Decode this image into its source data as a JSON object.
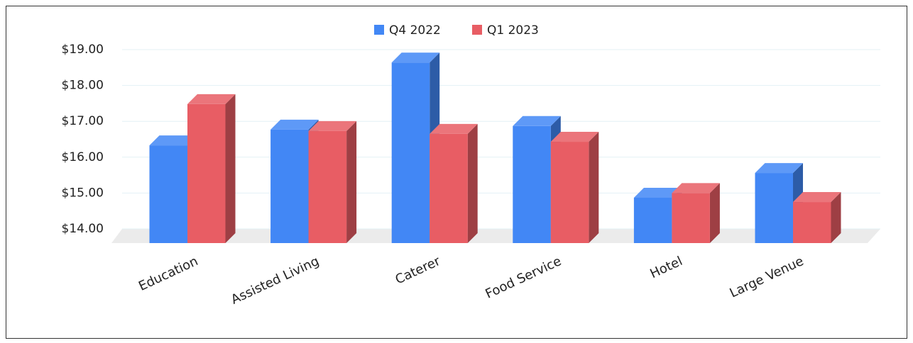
{
  "chart_data": {
    "type": "bar3d",
    "categories": [
      "Education",
      "Assisted Living",
      "Caterer",
      "Food Service",
      "Hotel",
      "Large Venue"
    ],
    "series": [
      {
        "name": "Q4 2022",
        "color": "#4287f5",
        "values": [
          16.33,
          16.77,
          18.64,
          16.87,
          14.87,
          15.56
        ]
      },
      {
        "name": "Q1 2023",
        "color": "#e85d64",
        "values": [
          17.48,
          16.73,
          16.65,
          16.43,
          15.0,
          14.75
        ]
      }
    ],
    "ylim": [
      14,
      19
    ],
    "yticks": [
      {
        "value": 14,
        "label": "$14.00"
      },
      {
        "value": 15,
        "label": "$15.00"
      },
      {
        "value": 16,
        "label": "$16.00"
      },
      {
        "value": 17,
        "label": "$17.00"
      },
      {
        "value": 18,
        "label": "$18.00"
      },
      {
        "value": 19,
        "label": "$19.00"
      }
    ],
    "grid": true,
    "legend": "top"
  }
}
